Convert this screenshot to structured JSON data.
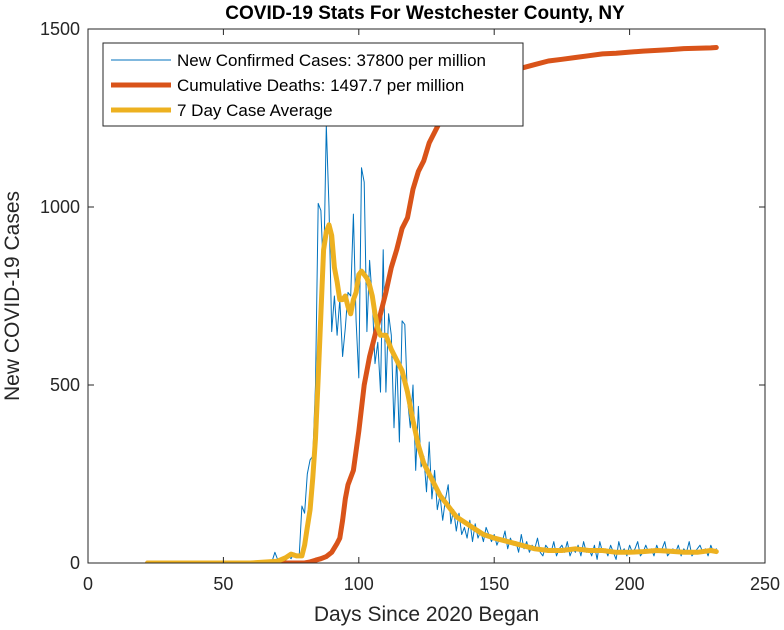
{
  "chart_data": {
    "type": "line",
    "title": "COVID-19 Stats For Westchester County, NY",
    "xlabel": "Days Since 2020 Began",
    "ylabel": "New COVID-19 Cases",
    "xlim": [
      0,
      250
    ],
    "ylim": [
      0,
      1500
    ],
    "xticks": [
      0,
      50,
      100,
      150,
      200,
      250
    ],
    "yticks": [
      0,
      500,
      1000,
      1500
    ],
    "grid": false,
    "legend_position": "top-left",
    "series": [
      {
        "name": "New Confirmed Cases: 37800 per million",
        "color": "#0072BD",
        "style": "thin",
        "x": [
          22,
          30,
          40,
          50,
          60,
          65,
          67,
          68,
          69,
          70,
          71,
          72,
          73,
          74,
          75,
          76,
          77,
          78,
          79,
          80,
          81,
          82,
          83,
          84,
          85,
          86,
          87,
          88,
          89,
          90,
          91,
          92,
          93,
          94,
          95,
          96,
          97,
          98,
          99,
          100,
          101,
          102,
          103,
          104,
          105,
          106,
          107,
          108,
          109,
          110,
          111,
          112,
          113,
          114,
          115,
          116,
          117,
          118,
          119,
          120,
          121,
          122,
          123,
          124,
          125,
          126,
          127,
          128,
          129,
          130,
          131,
          132,
          133,
          134,
          135,
          136,
          137,
          138,
          139,
          140,
          141,
          142,
          143,
          144,
          145,
          146,
          147,
          148,
          149,
          150,
          151,
          152,
          153,
          154,
          155,
          156,
          157,
          158,
          159,
          160,
          161,
          162,
          163,
          164,
          165,
          166,
          167,
          168,
          169,
          170,
          171,
          172,
          173,
          174,
          175,
          176,
          177,
          178,
          179,
          180,
          181,
          182,
          183,
          184,
          185,
          186,
          187,
          188,
          189,
          190,
          191,
          192,
          193,
          194,
          195,
          196,
          197,
          198,
          199,
          200,
          201,
          202,
          203,
          204,
          205,
          206,
          207,
          208,
          209,
          210,
          211,
          212,
          213,
          214,
          215,
          216,
          217,
          218,
          219,
          220,
          221,
          222,
          223,
          224,
          225,
          226,
          227,
          228,
          229,
          230,
          231,
          232
        ],
        "y": [
          0,
          0,
          0,
          0,
          0,
          0,
          2,
          5,
          30,
          10,
          3,
          15,
          8,
          20,
          12,
          28,
          25,
          20,
          160,
          140,
          250,
          290,
          300,
          500,
          1010,
          990,
          800,
          1230,
          1000,
          650,
          750,
          640,
          740,
          580,
          660,
          760,
          750,
          980,
          680,
          520,
          1110,
          1070,
          650,
          850,
          740,
          560,
          620,
          480,
          880,
          480,
          700,
          640,
          380,
          580,
          340,
          680,
          670,
          460,
          380,
          500,
          260,
          440,
          270,
          300,
          200,
          340,
          180,
          260,
          150,
          190,
          120,
          180,
          220,
          110,
          150,
          90,
          140,
          80,
          100,
          70,
          120,
          60,
          110,
          70,
          90,
          60,
          100,
          80,
          60,
          80,
          50,
          70,
          60,
          90,
          40,
          70,
          50,
          60,
          30,
          80,
          40,
          60,
          30,
          50,
          40,
          70,
          30,
          20,
          50,
          40,
          30,
          60,
          20,
          40,
          50,
          30,
          60,
          20,
          40,
          30,
          50,
          20,
          60,
          30,
          40,
          20,
          50,
          10,
          60,
          30,
          40,
          20,
          50,
          30,
          10,
          60,
          30,
          40,
          20,
          50,
          30,
          40,
          60,
          20,
          30,
          50,
          30,
          40,
          20,
          50,
          30,
          40,
          60,
          20,
          30,
          40,
          30,
          50,
          20,
          40,
          30,
          60,
          20,
          30,
          40,
          50,
          30,
          40,
          20,
          50,
          30,
          40
        ]
      },
      {
        "name": "Cumulative Deaths: 1497.7 per million",
        "color": "#D95319",
        "style": "thick",
        "x": [
          22,
          70,
          80,
          82,
          84,
          86,
          88,
          90,
          92,
          93,
          94,
          95,
          96,
          98,
          100,
          102,
          104,
          106,
          108,
          110,
          112,
          114,
          116,
          118,
          120,
          122,
          124,
          126,
          128,
          130,
          135,
          140,
          145,
          150,
          155,
          160,
          165,
          170,
          175,
          180,
          185,
          190,
          195,
          200,
          205,
          210,
          215,
          220,
          225,
          230,
          232
        ],
        "y": [
          0,
          0,
          0,
          3,
          8,
          12,
          18,
          30,
          55,
          70,
          120,
          180,
          220,
          260,
          370,
          500,
          580,
          640,
          700,
          760,
          830,
          880,
          940,
          970,
          1050,
          1100,
          1130,
          1180,
          1210,
          1240,
          1290,
          1330,
          1350,
          1370,
          1380,
          1390,
          1400,
          1410,
          1415,
          1420,
          1425,
          1430,
          1432,
          1435,
          1438,
          1440,
          1442,
          1445,
          1446,
          1447,
          1448
        ]
      },
      {
        "name": "7 Day Case Average",
        "color": "#EDB120",
        "style": "thick",
        "x": [
          22,
          40,
          60,
          70,
          73,
          75,
          77,
          79,
          80,
          81,
          82,
          83,
          84,
          85,
          86,
          87,
          88,
          89,
          90,
          91,
          92,
          93,
          94,
          95,
          96,
          97,
          98,
          99,
          100,
          101,
          102,
          103,
          104,
          105,
          106,
          107,
          108,
          110,
          112,
          114,
          116,
          118,
          120,
          122,
          124,
          126,
          128,
          130,
          132,
          134,
          136,
          138,
          140,
          142,
          144,
          146,
          148,
          150,
          155,
          160,
          165,
          170,
          175,
          180,
          185,
          190,
          195,
          200,
          205,
          210,
          215,
          220,
          225,
          230,
          232
        ],
        "y": [
          0,
          0,
          0,
          5,
          15,
          25,
          20,
          20,
          50,
          100,
          150,
          240,
          350,
          520,
          700,
          880,
          930,
          950,
          920,
          830,
          790,
          740,
          740,
          750,
          720,
          700,
          740,
          760,
          810,
          820,
          810,
          800,
          780,
          750,
          700,
          660,
          640,
          640,
          600,
          570,
          540,
          480,
          400,
          330,
          280,
          250,
          220,
          190,
          170,
          150,
          130,
          120,
          110,
          100,
          90,
          80,
          75,
          70,
          60,
          50,
          40,
          35,
          35,
          40,
          35,
          35,
          30,
          30,
          32,
          35,
          33,
          30,
          30,
          35,
          32
        ]
      }
    ]
  }
}
